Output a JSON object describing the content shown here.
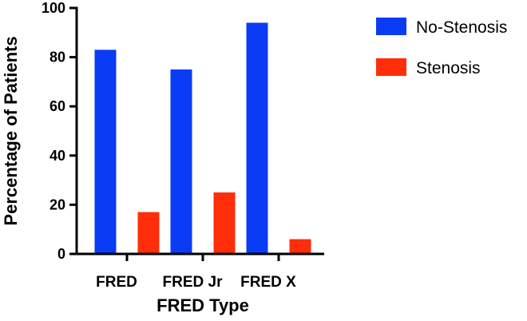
{
  "chart_data": {
    "type": "bar",
    "title": "",
    "xlabel": "FRED Type",
    "ylabel": "Percentage of Patients",
    "categories": [
      "FRED",
      "FRED Jr",
      "FRED X"
    ],
    "ylim": [
      0,
      100
    ],
    "yticks": [
      0,
      20,
      40,
      60,
      80,
      100
    ],
    "grid": false,
    "legend_position": "top-right",
    "series": [
      {
        "name": "No-Stenosis",
        "color": "#0a3cf5",
        "values": [
          83,
          75,
          94
        ]
      },
      {
        "name": "Stenosis",
        "color": "#ff2d0a",
        "values": [
          17,
          25,
          6
        ]
      }
    ]
  }
}
